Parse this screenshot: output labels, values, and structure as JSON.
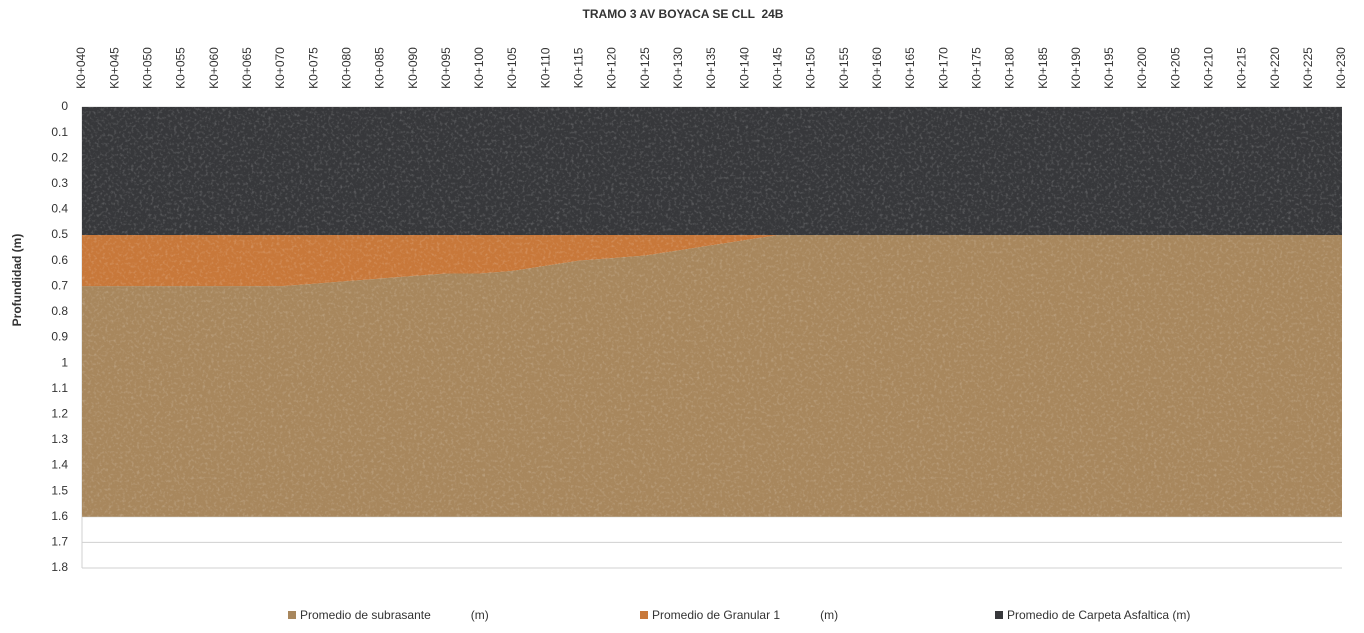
{
  "chart_data": {
    "type": "stacked_area",
    "title": "TRAMO 3 AV BOYACA SE CLL  24B",
    "y_label": "Profundidad (m)",
    "categories": [
      "K0+040",
      "K0+045",
      "K0+050",
      "K0+055",
      "K0+060",
      "K0+065",
      "K0+070",
      "K0+075",
      "K0+080",
      "K0+085",
      "K0+090",
      "K0+095",
      "K0+100",
      "K0+105",
      "K0+110",
      "K0+115",
      "K0+120",
      "K0+125",
      "K0+130",
      "K0+135",
      "K0+140",
      "K0+145",
      "K0+150",
      "K0+155",
      "K0+160",
      "K0+165",
      "K0+170",
      "K0+175",
      "K0+180",
      "K0+185",
      "K0+190",
      "K0+195",
      "K0+200",
      "K0+205",
      "K0+210",
      "K0+215",
      "K0+220",
      "K0+225",
      "K0+230"
    ],
    "series": [
      {
        "name": "Promedio de subrasante            (m)",
        "color": "#a8875d",
        "values": [
          0.9,
          0.9,
          0.9,
          0.9,
          0.9,
          0.9,
          0.9,
          0.91,
          0.92,
          0.93,
          0.94,
          0.95,
          0.95,
          0.96,
          0.98,
          1.0,
          1.01,
          1.02,
          1.04,
          1.06,
          1.08,
          1.1,
          1.1,
          1.1,
          1.1,
          1.1,
          1.1,
          1.1,
          1.1,
          1.1,
          1.1,
          1.1,
          1.1,
          1.1,
          1.1,
          1.1,
          1.1,
          1.1,
          1.1
        ]
      },
      {
        "name": "Promedio de Granular 1            (m)",
        "color": "#c8783a",
        "values": [
          0.2,
          0.2,
          0.2,
          0.2,
          0.2,
          0.2,
          0.2,
          0.19,
          0.18,
          0.17,
          0.16,
          0.15,
          0.15,
          0.14,
          0.12,
          0.1,
          0.09,
          0.08,
          0.06,
          0.04,
          0.02,
          0,
          0,
          0,
          0,
          0,
          0,
          0,
          0,
          0,
          0,
          0,
          0,
          0,
          0,
          0,
          0,
          0,
          0
        ]
      },
      {
        "name": "Promedio de Carpeta Asfaltica (m)",
        "color": "#37383b",
        "values": [
          0.5,
          0.5,
          0.5,
          0.5,
          0.5,
          0.5,
          0.5,
          0.5,
          0.5,
          0.5,
          0.5,
          0.5,
          0.5,
          0.5,
          0.5,
          0.5,
          0.5,
          0.5,
          0.5,
          0.5,
          0.5,
          0.5,
          0.5,
          0.5,
          0.5,
          0.5,
          0.5,
          0.5,
          0.5,
          0.5,
          0.5,
          0.5,
          0.5,
          0.5,
          0.5,
          0.5,
          0.5,
          0.5,
          0.5
        ]
      }
    ],
    "ylim": [
      0,
      1.8
    ],
    "y_inverted": true,
    "yticks": [
      0,
      0.1,
      0.2,
      0.3,
      0.4,
      0.5,
      0.6,
      0.7,
      0.8,
      0.9,
      1,
      1.1,
      1.2,
      1.3,
      1.4,
      1.5,
      1.6,
      1.7,
      1.8
    ],
    "grid": true
  }
}
